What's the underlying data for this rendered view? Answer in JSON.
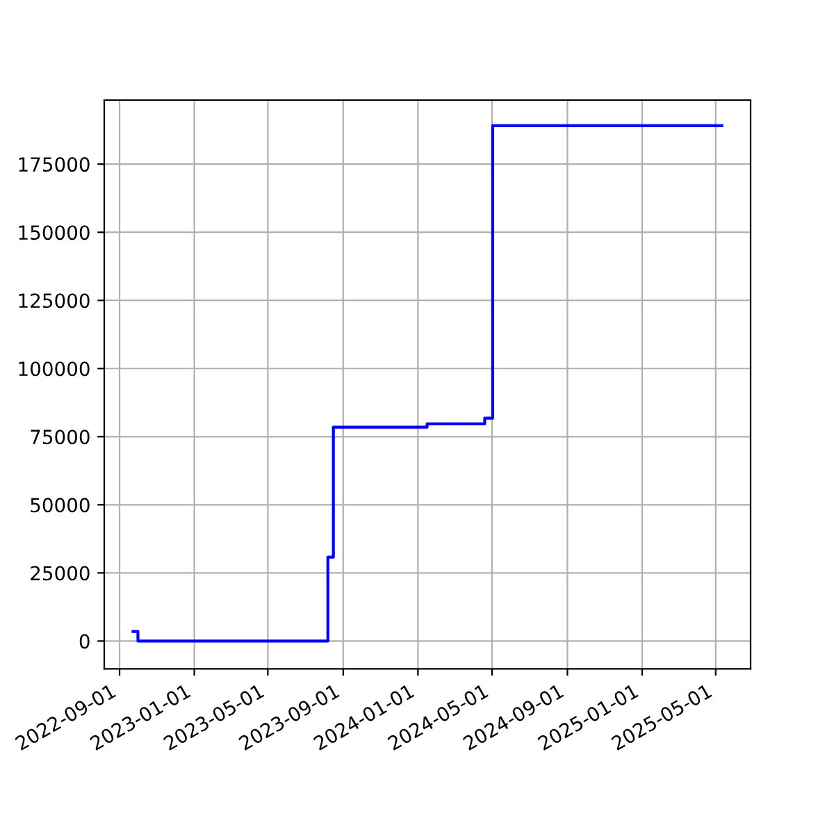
{
  "chart_data": {
    "type": "step",
    "x": [
      "2022-09-23",
      "2022-10-01",
      "2023-08-07",
      "2023-08-16",
      "2024-01-16",
      "2024-04-19",
      "2024-05-02",
      "2025-05-11"
    ],
    "series": [
      {
        "color": "#0000ff",
        "values": [
          3500,
          0,
          30800,
          78500,
          79700,
          81800,
          189100,
          189100
        ]
      }
    ],
    "xlim": [
      "2022-08-07",
      "2025-06-27"
    ],
    "xticks": [
      "2022-09-01",
      "2023-01-01",
      "2023-05-01",
      "2023-09-01",
      "2024-01-01",
      "2024-05-01",
      "2024-09-01",
      "2025-01-01",
      "2025-05-01"
    ],
    "ylim": [
      -10200,
      198500
    ],
    "yticks": [
      0,
      25000,
      50000,
      75000,
      100000,
      125000,
      150000,
      175000
    ],
    "grid": true
  }
}
